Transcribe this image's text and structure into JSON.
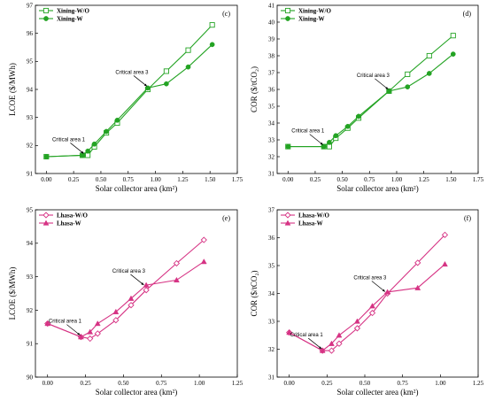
{
  "chart_data": [
    {
      "type": "line",
      "panel_label": "(c)",
      "xlabel": "Solar collector area (km²)",
      "ylabel": "LCOE ($/MWh)",
      "xlim": [
        -0.1,
        1.75
      ],
      "ylim": [
        91,
        97
      ],
      "xticks": [
        0.0,
        0.25,
        0.5,
        0.75,
        1.0,
        1.25,
        1.5,
        1.75
      ],
      "yticks": [
        91,
        92,
        93,
        94,
        95,
        96,
        97
      ],
      "color": "#23a323",
      "legend_position": "top-left",
      "series": [
        {
          "name": "Xining-W/O",
          "marker": "open-square",
          "x": [
            0.0,
            0.33,
            0.38,
            0.44,
            0.55,
            0.65,
            0.93,
            1.1,
            1.3,
            1.52
          ],
          "y": [
            91.6,
            91.65,
            91.65,
            91.95,
            92.45,
            92.8,
            94.0,
            94.65,
            95.4,
            96.3
          ]
        },
        {
          "name": "Xining-W",
          "marker": "filled-circle",
          "x": [
            0.0,
            0.33,
            0.38,
            0.44,
            0.55,
            0.65,
            0.93,
            1.1,
            1.3,
            1.52
          ],
          "y": [
            91.6,
            91.65,
            91.8,
            92.05,
            92.5,
            92.9,
            94.05,
            94.2,
            94.8,
            95.6
          ]
        }
      ],
      "annotations": [
        {
          "text": "Critical area 1",
          "x": 0.35,
          "y": 91.65
        },
        {
          "text": "Critical area 3",
          "x": 0.93,
          "y": 94.05
        }
      ]
    },
    {
      "type": "line",
      "panel_label": "(d)",
      "xlabel": "Solar collector area (km²)",
      "ylabel": "COR ($/tCO₂)",
      "xlim": [
        -0.1,
        1.75
      ],
      "ylim": [
        31,
        41
      ],
      "xticks": [
        0.0,
        0.25,
        0.5,
        0.75,
        1.0,
        1.25,
        1.5,
        1.75
      ],
      "yticks": [
        31,
        32,
        33,
        34,
        35,
        36,
        37,
        38,
        39,
        40,
        41
      ],
      "color": "#23a323",
      "legend_position": "top-left",
      "series": [
        {
          "name": "Xining-W/O",
          "marker": "open-square",
          "x": [
            0.0,
            0.33,
            0.38,
            0.44,
            0.55,
            0.65,
            0.93,
            1.1,
            1.3,
            1.52
          ],
          "y": [
            32.6,
            32.6,
            32.6,
            33.1,
            33.7,
            34.3,
            35.9,
            36.9,
            38.0,
            39.2
          ]
        },
        {
          "name": "Xining-W",
          "marker": "filled-circle",
          "x": [
            0.0,
            0.33,
            0.38,
            0.44,
            0.55,
            0.65,
            0.93,
            1.1,
            1.3,
            1.52
          ],
          "y": [
            32.6,
            32.6,
            32.85,
            33.25,
            33.8,
            34.4,
            35.9,
            36.15,
            36.95,
            38.1
          ]
        }
      ],
      "annotations": [
        {
          "text": "Critical area 1",
          "x": 0.33,
          "y": 32.6
        },
        {
          "text": "Critical area 3",
          "x": 0.93,
          "y": 35.9
        }
      ]
    },
    {
      "type": "line",
      "panel_label": "(e)",
      "xlabel": "Solar collector area (km²)",
      "ylabel": "LCOE ($/MWh)",
      "xlim": [
        -0.08,
        1.25
      ],
      "ylim": [
        90,
        95
      ],
      "xticks": [
        0.0,
        0.25,
        0.5,
        0.75,
        1.0,
        1.25
      ],
      "yticks": [
        90,
        91,
        92,
        93,
        94,
        95
      ],
      "color": "#d63384",
      "legend_position": "top-left",
      "series": [
        {
          "name": "Lhasa-W/O",
          "marker": "open-diamond",
          "x": [
            0.0,
            0.22,
            0.28,
            0.33,
            0.45,
            0.55,
            0.65,
            0.85,
            1.03
          ],
          "y": [
            91.6,
            91.2,
            91.15,
            91.3,
            91.7,
            92.15,
            92.6,
            93.4,
            94.1
          ]
        },
        {
          "name": "Lhasa-W",
          "marker": "filled-triangle",
          "x": [
            0.0,
            0.22,
            0.28,
            0.33,
            0.45,
            0.55,
            0.65,
            0.85,
            1.03
          ],
          "y": [
            91.6,
            91.2,
            91.35,
            91.6,
            91.95,
            92.35,
            92.75,
            92.9,
            93.45
          ]
        }
      ],
      "annotations": [
        {
          "text": "Critical area 1",
          "x": 0.22,
          "y": 91.2
        },
        {
          "text": "Critical area 3",
          "x": 0.64,
          "y": 92.7
        }
      ]
    },
    {
      "type": "line",
      "panel_label": "(f)",
      "xlabel": "Solar collecter area (km²)",
      "ylabel": "COR ($/tCO₂)",
      "xlim": [
        -0.08,
        1.25
      ],
      "ylim": [
        31,
        37
      ],
      "xticks": [
        0.0,
        0.25,
        0.5,
        0.75,
        1.0,
        1.25
      ],
      "yticks": [
        31,
        32,
        33,
        34,
        35,
        36,
        37
      ],
      "color": "#d63384",
      "legend_position": "top-left",
      "series": [
        {
          "name": "Lhasa-W/O",
          "marker": "open-diamond",
          "x": [
            0.0,
            0.22,
            0.28,
            0.33,
            0.45,
            0.55,
            0.65,
            0.85,
            1.03
          ],
          "y": [
            32.6,
            31.95,
            31.95,
            32.2,
            32.75,
            33.3,
            34.0,
            35.1,
            36.1
          ]
        },
        {
          "name": "Lhasa-W",
          "marker": "filled-triangle",
          "x": [
            0.0,
            0.22,
            0.28,
            0.33,
            0.45,
            0.55,
            0.65,
            0.85,
            1.03
          ],
          "y": [
            32.6,
            31.95,
            32.2,
            32.5,
            33.0,
            33.55,
            34.05,
            34.2,
            35.05
          ]
        }
      ],
      "annotations": [
        {
          "text": "Critical area 1",
          "x": 0.22,
          "y": 31.95
        },
        {
          "text": "Critical area 3",
          "x": 0.64,
          "y": 34.0
        }
      ]
    }
  ]
}
